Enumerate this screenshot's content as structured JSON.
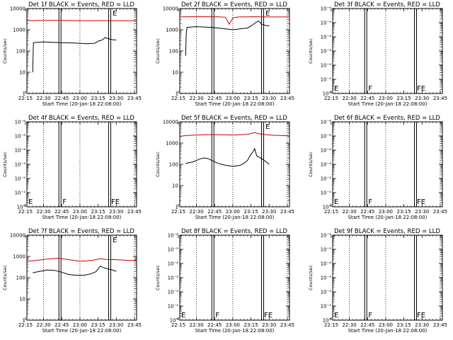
{
  "chart_data": [
    {
      "type": "line",
      "title": "Det 1f BLACK = Events, RED = LLD",
      "ylabel": "Counts/sec",
      "xlabel": "Start Time (20-Jan-18 22:08:00)",
      "scale": "log",
      "ylim": [
        1,
        10000
      ],
      "yticks": [
        {
          "v": 1,
          "l": "1"
        },
        {
          "v": 10,
          "l": "10"
        },
        {
          "v": 100,
          "l": "100"
        },
        {
          "v": 1000,
          "l": "1000"
        },
        {
          "v": 10000,
          "l": "10000"
        }
      ],
      "flags": [
        {
          "t": "E",
          "x": 23.43,
          "pos": "top"
        }
      ],
      "series": [
        {
          "color": "black",
          "x": [
            22.35,
            22.36,
            22.37,
            22.5,
            22.7,
            22.9,
            23.0,
            23.1,
            23.2,
            23.23,
            23.26,
            23.3,
            23.35,
            23.4,
            23.45,
            23.5
          ],
          "y": [
            10,
            240,
            250,
            270,
            250,
            240,
            230,
            220,
            230,
            260,
            300,
            320,
            430,
            370,
            340,
            330
          ]
        },
        {
          "color": "red",
          "x": [
            22.27,
            22.35,
            22.5,
            22.7,
            22.9,
            23.1,
            23.3,
            23.5,
            23.7,
            23.78
          ],
          "y": [
            2700,
            2700,
            2750,
            2750,
            2700,
            2650,
            2700,
            2650,
            2650,
            2650
          ]
        }
      ]
    },
    {
      "type": "line",
      "title": "Det 2f BLACK = Events, RED = LLD",
      "ylabel": "Counts/sec",
      "xlabel": "Start Time (20-Jan-18 22:08:00)",
      "scale": "log",
      "ylim": [
        1,
        10000
      ],
      "yticks": [
        {
          "v": 1,
          "l": "1"
        },
        {
          "v": 10,
          "l": "10"
        },
        {
          "v": 100,
          "l": "100"
        },
        {
          "v": 1000,
          "l": "1000"
        },
        {
          "v": 10000,
          "l": "10000"
        }
      ],
      "flags": [
        {
          "t": "E",
          "x": 23.43,
          "pos": "top"
        }
      ],
      "series": [
        {
          "color": "black",
          "x": [
            22.35,
            22.36,
            22.37,
            22.5,
            22.7,
            22.8,
            22.9,
            23.0,
            23.1,
            23.2,
            23.25,
            23.3,
            23.35,
            23.38,
            23.4,
            23.45,
            23.5
          ],
          "y": [
            60,
            700,
            1300,
            1400,
            1300,
            1200,
            1100,
            1000,
            1100,
            1200,
            1500,
            2000,
            2600,
            2100,
            1800,
            1600,
            1500
          ]
        },
        {
          "color": "red",
          "x": [
            22.27,
            22.4,
            22.6,
            22.8,
            22.9,
            22.95,
            23.0,
            23.05,
            23.1,
            23.3,
            23.5,
            23.7,
            23.78
          ],
          "y": [
            4000,
            4100,
            4100,
            4050,
            3900,
            1800,
            3600,
            3900,
            4000,
            4100,
            4000,
            4000,
            4000
          ]
        }
      ]
    },
    {
      "type": "line",
      "title": "Det 3f BLACK = Events, RED = LLD",
      "ylabel": "Counts/sec",
      "xlabel": "Start Time (20-Jan-18 22:08:00)",
      "scale": "log",
      "ylim": [
        1,
        1e-06
      ],
      "yticks": [
        {
          "v": 1,
          "l": "10°"
        },
        {
          "v": 0.1,
          "l": "10⁻¹"
        },
        {
          "v": 0.01,
          "l": "10⁻²"
        },
        {
          "v": 0.001,
          "l": "10⁻³"
        },
        {
          "v": 0.0001,
          "l": "10⁻⁴"
        },
        {
          "v": 1e-05,
          "l": "10⁻⁵"
        },
        {
          "v": 1e-06,
          "l": "10⁻⁶"
        }
      ],
      "flags": [
        {
          "t": "E",
          "x": 22.27,
          "pos": "bottom"
        },
        {
          "t": "F",
          "x": 22.74,
          "pos": "bottom"
        },
        {
          "t": "FE",
          "x": 23.41,
          "pos": "bottom"
        }
      ],
      "series": []
    },
    {
      "type": "line",
      "title": "Det 4f BLACK = Events, RED = LLD",
      "ylabel": "Counts/sec",
      "xlabel": "Start Time (20-Jan-18 22:08:00)",
      "scale": "log",
      "ylim": [
        1,
        1e-06
      ],
      "yticks": [
        {
          "v": 1,
          "l": "10°"
        },
        {
          "v": 0.1,
          "l": "10⁻¹"
        },
        {
          "v": 0.01,
          "l": "10⁻²"
        },
        {
          "v": 0.001,
          "l": "10⁻³"
        },
        {
          "v": 0.0001,
          "l": "10⁻⁴"
        },
        {
          "v": 1e-05,
          "l": "10⁻⁵"
        },
        {
          "v": 1e-06,
          "l": "10⁻⁶"
        }
      ],
      "flags": [
        {
          "t": "E",
          "x": 22.27,
          "pos": "bottom"
        },
        {
          "t": "F",
          "x": 22.74,
          "pos": "bottom"
        },
        {
          "t": "FE",
          "x": 23.41,
          "pos": "bottom"
        }
      ],
      "series": []
    },
    {
      "type": "line",
      "title": "Det 5f BLACK = Events, RED = LLD",
      "ylabel": "Counts/sec",
      "xlabel": "Start Time (20-Jan-18 22:08:00)",
      "scale": "log",
      "ylim": [
        1,
        10000
      ],
      "yticks": [
        {
          "v": 1,
          "l": "1"
        },
        {
          "v": 10,
          "l": "10"
        },
        {
          "v": 100,
          "l": "100"
        },
        {
          "v": 1000,
          "l": "1000"
        },
        {
          "v": 10000,
          "l": "10000"
        }
      ],
      "flags": [
        {
          "t": "E",
          "x": 23.43,
          "pos": "top"
        }
      ],
      "series": [
        {
          "color": "black",
          "x": [
            22.35,
            22.45,
            22.55,
            22.6,
            22.65,
            22.7,
            22.8,
            22.9,
            23.0,
            23.1,
            23.15,
            23.2,
            23.25,
            23.28,
            23.3,
            23.33,
            23.36,
            23.4,
            23.45,
            23.5
          ],
          "y": [
            110,
            130,
            180,
            200,
            190,
            160,
            110,
            90,
            80,
            90,
            110,
            150,
            300,
            400,
            550,
            250,
            220,
            180,
            140,
            100
          ]
        },
        {
          "color": "red",
          "x": [
            22.27,
            22.4,
            22.6,
            22.8,
            23.0,
            23.1,
            23.2,
            23.3,
            23.4,
            23.5,
            23.6,
            23.78
          ],
          "y": [
            2100,
            2300,
            2500,
            2500,
            2400,
            2500,
            2600,
            3100,
            2600,
            2400,
            2300,
            2200
          ]
        }
      ]
    },
    {
      "type": "line",
      "title": "Det 6f BLACK = Events, RED = LLD",
      "ylabel": "Counts/sec",
      "xlabel": "Start Time (20-Jan-18 22:08:00)",
      "scale": "log",
      "ylim": [
        1,
        1e-06
      ],
      "yticks": [
        {
          "v": 1,
          "l": "10°"
        },
        {
          "v": 0.1,
          "l": "10⁻¹"
        },
        {
          "v": 0.01,
          "l": "10⁻²"
        },
        {
          "v": 0.001,
          "l": "10⁻³"
        },
        {
          "v": 0.0001,
          "l": "10⁻⁴"
        },
        {
          "v": 1e-05,
          "l": "10⁻⁵"
        },
        {
          "v": 1e-06,
          "l": "10⁻⁶"
        }
      ],
      "flags": [
        {
          "t": "E",
          "x": 22.27,
          "pos": "bottom"
        },
        {
          "t": "F",
          "x": 22.74,
          "pos": "bottom"
        },
        {
          "t": "FE",
          "x": 23.41,
          "pos": "bottom"
        }
      ],
      "series": []
    },
    {
      "type": "line",
      "title": "Det 7f BLACK = Events, RED = LLD",
      "ylabel": "Counts/sec",
      "xlabel": "Start Time (20-Jan-18 22:08:00)",
      "scale": "log",
      "ylim": [
        1,
        10000
      ],
      "yticks": [
        {
          "v": 1,
          "l": "1"
        },
        {
          "v": 10,
          "l": "10"
        },
        {
          "v": 100,
          "l": "100"
        },
        {
          "v": 1000,
          "l": "1000"
        },
        {
          "v": 10000,
          "l": "10000"
        }
      ],
      "flags": [
        {
          "t": "E",
          "x": 23.43,
          "pos": "top"
        }
      ],
      "series": [
        {
          "color": "black",
          "x": [
            22.35,
            22.45,
            22.55,
            22.65,
            22.75,
            22.85,
            22.95,
            23.05,
            23.15,
            23.22,
            23.28,
            23.32,
            23.38,
            23.45,
            23.5
          ],
          "y": [
            170,
            200,
            230,
            220,
            180,
            140,
            130,
            130,
            150,
            190,
            350,
            300,
            260,
            230,
            200
          ]
        },
        {
          "color": "red",
          "x": [
            22.27,
            22.4,
            22.55,
            22.7,
            22.85,
            23.0,
            23.1,
            23.2,
            23.28,
            23.35,
            23.5,
            23.65,
            23.78
          ],
          "y": [
            600,
            650,
            750,
            820,
            700,
            600,
            620,
            680,
            780,
            720,
            700,
            650,
            650
          ]
        }
      ]
    },
    {
      "type": "line",
      "title": "Det 8f BLACK = Events, RED = LLD",
      "ylabel": "Counts/sec",
      "xlabel": "Start Time (20-Jan-18 22:08:00)",
      "scale": "log",
      "ylim": [
        1,
        1e-06
      ],
      "yticks": [
        {
          "v": 1,
          "l": "10°"
        },
        {
          "v": 0.1,
          "l": "10⁻¹"
        },
        {
          "v": 0.01,
          "l": "10⁻²"
        },
        {
          "v": 0.001,
          "l": "10⁻³"
        },
        {
          "v": 0.0001,
          "l": "10⁻⁴"
        },
        {
          "v": 1e-05,
          "l": "10⁻⁵"
        },
        {
          "v": 1e-06,
          "l": "10⁻⁶"
        }
      ],
      "flags": [
        {
          "t": "E",
          "x": 22.27,
          "pos": "bottom"
        },
        {
          "t": "F",
          "x": 22.74,
          "pos": "bottom"
        },
        {
          "t": "FE",
          "x": 23.41,
          "pos": "bottom"
        }
      ],
      "series": []
    },
    {
      "type": "line",
      "title": "Det 9f BLACK = Events, RED = LLD",
      "ylabel": "Counts/sec",
      "xlabel": "Start Time (20-Jan-18 22:08:00)",
      "scale": "log",
      "ylim": [
        1,
        1e-06
      ],
      "yticks": [
        {
          "v": 1,
          "l": "10°"
        },
        {
          "v": 0.1,
          "l": "10⁻¹"
        },
        {
          "v": 0.01,
          "l": "10⁻²"
        },
        {
          "v": 0.001,
          "l": "10⁻³"
        },
        {
          "v": 0.0001,
          "l": "10⁻⁴"
        },
        {
          "v": 1e-05,
          "l": "10⁻⁵"
        },
        {
          "v": 1e-06,
          "l": "10⁻⁶"
        }
      ],
      "flags": [
        {
          "t": "E",
          "x": 22.27,
          "pos": "bottom"
        },
        {
          "t": "F",
          "x": 22.74,
          "pos": "bottom"
        },
        {
          "t": "FE",
          "x": 23.41,
          "pos": "bottom"
        }
      ],
      "series": []
    }
  ],
  "shared": {
    "xlim": [
      22.27,
      23.78
    ],
    "xticks": [
      "22:15",
      "22:30",
      "22:45",
      "23:00",
      "23:15",
      "23:30",
      "23:45"
    ],
    "xtick_values": [
      22.25,
      22.5,
      22.75,
      23.0,
      23.25,
      23.5,
      23.75
    ],
    "dotted_lines": [
      22.5,
      23.0,
      23.75
    ],
    "solid_double_lines": [
      22.725,
      23.41
    ],
    "colors": {
      "events": "#000000",
      "lld": "#cc0000",
      "axes": "#000000"
    }
  }
}
